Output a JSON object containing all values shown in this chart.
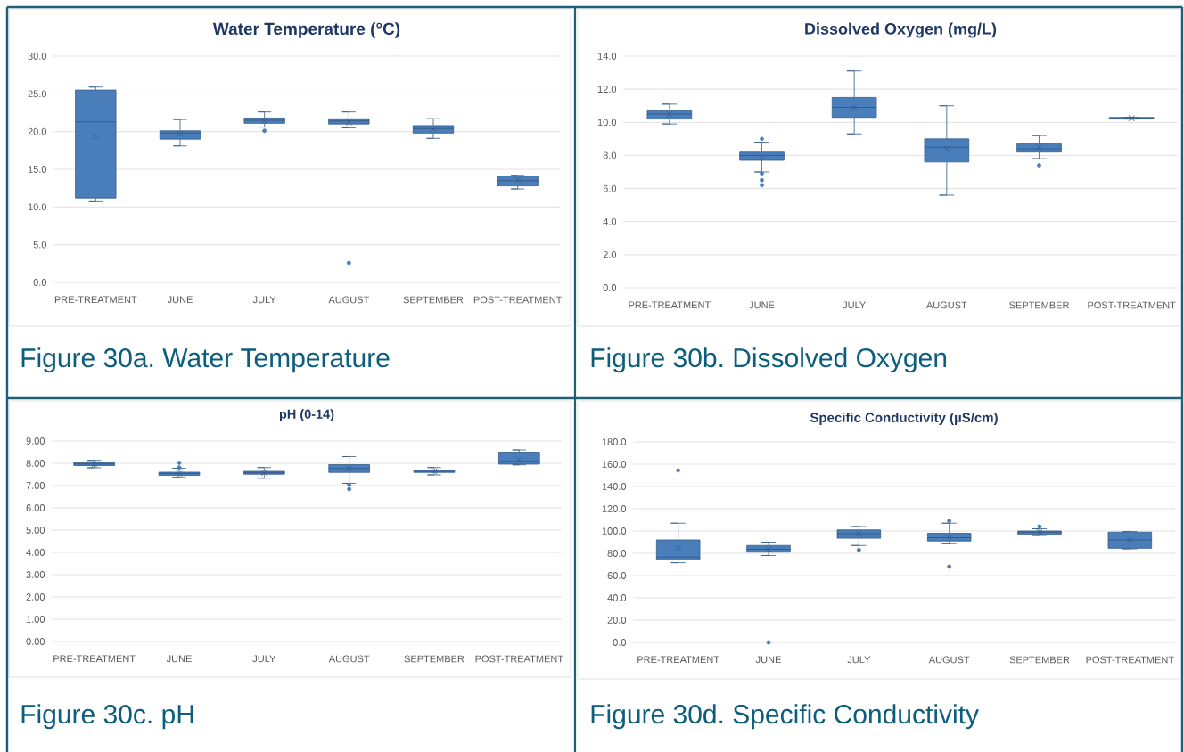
{
  "chart_data": [
    {
      "type": "box",
      "title": "Water Temperature (°C)",
      "categories": [
        "PRE-TREATMENT",
        "JUNE",
        "JULY",
        "AUGUST",
        "SEPTEMBER",
        "POST-TREATMENT"
      ],
      "color": "#4a7ebb",
      "boxes": [
        {
          "low": 10.7,
          "q1": 11.2,
          "median": 21.3,
          "q3": 25.5,
          "high": 25.9,
          "mean": 19.4
        },
        {
          "low": 18.1,
          "q1": 19.0,
          "median": 19.8,
          "q3": 20.1,
          "high": 21.6,
          "mean": 19.7
        },
        {
          "low": 20.6,
          "q1": 21.1,
          "median": 21.5,
          "q3": 21.8,
          "high": 22.6,
          "mean": 21.4,
          "outliers": [
            20.1
          ]
        },
        {
          "low": 20.5,
          "q1": 21.0,
          "median": 21.4,
          "q3": 21.7,
          "high": 22.6,
          "mean": 21.2,
          "outliers": [
            2.6
          ]
        },
        {
          "low": 19.1,
          "q1": 19.8,
          "median": 20.4,
          "q3": 20.8,
          "high": 21.7,
          "mean": 20.3
        },
        {
          "low": 12.4,
          "q1": 12.8,
          "median": 13.5,
          "q3": 14.1,
          "high": 14.2,
          "mean": 13.6
        }
      ],
      "ylim": [
        0,
        30
      ],
      "yticks": [
        {
          "value": 0,
          "label": "0.0"
        },
        {
          "value": 5,
          "label": "5.0"
        },
        {
          "value": 10,
          "label": "10.0"
        },
        {
          "value": 15,
          "label": "15.0"
        },
        {
          "value": 20,
          "label": "20.0"
        },
        {
          "value": 25,
          "label": "25.0"
        },
        {
          "value": 30,
          "label": "30.0"
        }
      ],
      "grid": "y",
      "annotations": [
        "Figure 30a. Water Temperature"
      ]
    },
    {
      "type": "box",
      "title": "Dissolved Oxygen (mg/L)",
      "categories": [
        "PRE-TREATMENT",
        "JUNE",
        "JULY",
        "AUGUST",
        "SEPTEMBER",
        "POST-TREATMENT"
      ],
      "color": "#4a7ebb",
      "boxes": [
        {
          "low": 9.9,
          "q1": 10.2,
          "median": 10.5,
          "q3": 10.7,
          "high": 11.1,
          "mean": 10.5
        },
        {
          "low": 7.0,
          "q1": 7.7,
          "median": 8.0,
          "q3": 8.2,
          "high": 8.8,
          "mean": 7.9,
          "outliers": [
            9.0,
            6.9,
            6.5,
            6.2
          ]
        },
        {
          "low": 9.3,
          "q1": 10.3,
          "median": 10.9,
          "q3": 11.5,
          "high": 13.1,
          "mean": 10.9
        },
        {
          "low": 5.6,
          "q1": 7.6,
          "median": 8.5,
          "q3": 9.0,
          "high": 11.0,
          "mean": 8.4
        },
        {
          "low": 7.8,
          "q1": 8.2,
          "median": 8.4,
          "q3": 8.7,
          "high": 9.2,
          "mean": 8.5,
          "outliers": [
            7.4
          ]
        },
        {
          "low": 10.2,
          "q1": 10.2,
          "median": 10.25,
          "q3": 10.3,
          "high": 10.3,
          "mean": 10.25
        }
      ],
      "ylim": [
        0,
        14
      ],
      "yticks": [
        {
          "value": 0,
          "label": "0.0"
        },
        {
          "value": 2,
          "label": "2.0"
        },
        {
          "value": 4,
          "label": "4.0"
        },
        {
          "value": 6,
          "label": "6.0"
        },
        {
          "value": 8,
          "label": "8.0"
        },
        {
          "value": 10,
          "label": "10.0"
        },
        {
          "value": 12,
          "label": "12.0"
        },
        {
          "value": 14,
          "label": "14.0"
        }
      ],
      "grid": "y",
      "annotations": [
        "Figure 30b. Dissolved Oxygen"
      ]
    },
    {
      "type": "box",
      "title": "pH (0-14)",
      "categories": [
        "PRE-TREATMENT",
        "JUNE",
        "JULY",
        "AUGUST",
        "SEPTEMBER",
        "POST-TREATMENT"
      ],
      "color": "#4a7ebb",
      "boxes": [
        {
          "low": 7.8,
          "q1": 7.9,
          "median": 7.97,
          "q3": 8.02,
          "high": 8.13,
          "mean": 7.95
        },
        {
          "low": 7.37,
          "q1": 7.46,
          "median": 7.54,
          "q3": 7.6,
          "high": 7.78,
          "mean": 7.53,
          "outliers": [
            8.02,
            7.81
          ]
        },
        {
          "low": 7.33,
          "q1": 7.51,
          "median": 7.57,
          "q3": 7.64,
          "high": 7.81,
          "mean": 7.57
        },
        {
          "low": 7.1,
          "q1": 7.59,
          "median": 7.77,
          "q3": 7.94,
          "high": 8.3,
          "mean": 7.77,
          "outliers": [
            7.03,
            6.84
          ]
        },
        {
          "low": 7.48,
          "q1": 7.59,
          "median": 7.64,
          "q3": 7.7,
          "high": 7.81,
          "mean": 7.64
        },
        {
          "low": 7.93,
          "q1": 7.96,
          "median": 8.09,
          "q3": 8.5,
          "high": 8.6,
          "mean": 8.17
        }
      ],
      "ylim": [
        0,
        9
      ],
      "yticks": [
        {
          "value": 0,
          "label": "0.00"
        },
        {
          "value": 1,
          "label": "1.00"
        },
        {
          "value": 2,
          "label": "2.00"
        },
        {
          "value": 3,
          "label": "3.00"
        },
        {
          "value": 4,
          "label": "4.00"
        },
        {
          "value": 5,
          "label": "5.00"
        },
        {
          "value": 6,
          "label": "6.00"
        },
        {
          "value": 7,
          "label": "7.00"
        },
        {
          "value": 8,
          "label": "8.00"
        },
        {
          "value": 9,
          "label": "9.00"
        }
      ],
      "grid": "y",
      "annotations": [
        "Figure 30c. pH"
      ]
    },
    {
      "type": "box",
      "title": "Specific Conductivity (µS/cm)",
      "categories": [
        "PRE-TREATMENT",
        "JUNE",
        "JULY",
        "AUGUST",
        "SEPTEMBER",
        "POST-TREATMENT"
      ],
      "color": "#4a7ebb",
      "boxes": [
        {
          "low": 71.5,
          "q1": 74,
          "median": 76.5,
          "q3": 92,
          "high": 107,
          "mean": 85,
          "outliers": [
            154.5
          ]
        },
        {
          "low": 78,
          "q1": 81,
          "median": 83.5,
          "q3": 87,
          "high": 90,
          "mean": 83.5,
          "outliers": [
            0
          ]
        },
        {
          "low": 87,
          "q1": 93.5,
          "median": 97.5,
          "q3": 101,
          "high": 104,
          "mean": 97.5,
          "outliers": [
            83
          ]
        },
        {
          "low": 89,
          "q1": 91,
          "median": 94,
          "q3": 98,
          "high": 107,
          "mean": 94,
          "outliers": [
            109,
            68
          ]
        },
        {
          "low": 96,
          "q1": 97,
          "median": 99,
          "q3": 100,
          "high": 102,
          "mean": 99,
          "outliers": [
            104
          ]
        },
        {
          "low": 84,
          "q1": 84.5,
          "median": 92,
          "q3": 99,
          "high": 99.5,
          "mean": 92
        }
      ],
      "ylim": [
        0,
        180
      ],
      "yticks": [
        {
          "value": 0,
          "label": "0.0"
        },
        {
          "value": 20,
          "label": "20.0"
        },
        {
          "value": 40,
          "label": "40.0"
        },
        {
          "value": 60,
          "label": "60.0"
        },
        {
          "value": 80,
          "label": "80.0"
        },
        {
          "value": 100,
          "label": "100.0"
        },
        {
          "value": 120,
          "label": "120.0"
        },
        {
          "value": 140,
          "label": "140.0"
        },
        {
          "value": 160,
          "label": "160.0"
        },
        {
          "value": 180,
          "label": "180.0"
        }
      ],
      "grid": "y",
      "annotations": [
        "Figure 30d. Specific Conductivity"
      ]
    }
  ]
}
